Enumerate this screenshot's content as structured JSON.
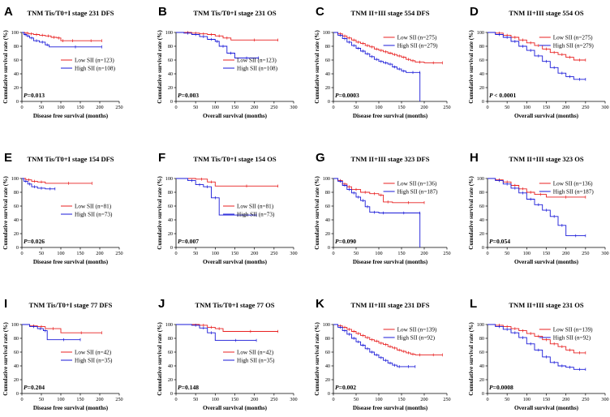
{
  "figure": {
    "letters": [
      "A",
      "B",
      "C",
      "D",
      "E",
      "F",
      "G",
      "H",
      "I",
      "J",
      "K",
      "L"
    ],
    "colors": {
      "low": "#e82020",
      "high": "#1a1ad8",
      "axis": "#000000"
    }
  },
  "chart_data": [
    {
      "type": "line",
      "letter": "A",
      "title": "TNM Tis/T0+I stage 231 DFS",
      "xlabel": "Disease free survival (months)",
      "ylabel": "Cumulative survival rate (%)",
      "xlim": [
        0,
        250
      ],
      "xticks": [
        0,
        50,
        100,
        150,
        200,
        250
      ],
      "ylim": [
        0,
        100
      ],
      "yticks": [
        0,
        20,
        40,
        60,
        80,
        100
      ],
      "pvalue": "P=0.013",
      "legend_position": "center-right",
      "series": [
        {
          "name": "Low SII (n=123)",
          "color": "#e82020",
          "x": [
            0,
            8,
            18,
            30,
            45,
            60,
            75,
            90,
            100,
            110,
            150,
            205
          ],
          "y": [
            100,
            99,
            98,
            97,
            96,
            95,
            93,
            92,
            88,
            88,
            88,
            88
          ]
        },
        {
          "name": "High SII (n=108)",
          "color": "#1a1ad8",
          "x": [
            0,
            5,
            12,
            20,
            30,
            45,
            60,
            70,
            205
          ],
          "y": [
            100,
            97,
            95,
            92,
            88,
            86,
            82,
            79,
            79
          ]
        }
      ]
    },
    {
      "type": "line",
      "letter": "B",
      "title": "TNM Tis/T0+I stage 231 OS",
      "xlabel": "Overall survival (months)",
      "ylabel": "Cumulative survival rate (%)",
      "xlim": [
        0,
        300
      ],
      "xticks": [
        0,
        50,
        100,
        150,
        200,
        250,
        300
      ],
      "ylim": [
        0,
        100
      ],
      "yticks": [
        0,
        20,
        40,
        60,
        80,
        100
      ],
      "pvalue": "P=0.003",
      "legend_position": "center-right",
      "series": [
        {
          "name": "Low SII (n=123)",
          "color": "#e82020",
          "x": [
            0,
            20,
            40,
            60,
            80,
            100,
            120,
            140,
            260
          ],
          "y": [
            100,
            100,
            99,
            98,
            97,
            95,
            92,
            89,
            89
          ]
        },
        {
          "name": "High SII (n=108)",
          "color": "#1a1ad8",
          "x": [
            0,
            20,
            40,
            60,
            80,
            100,
            110,
            130,
            150,
            210
          ],
          "y": [
            100,
            99,
            97,
            94,
            90,
            87,
            80,
            70,
            63,
            63
          ]
        }
      ]
    },
    {
      "type": "line",
      "letter": "C",
      "title": "TNM II+III stage 554 DFS",
      "xlabel": "Disease free survival (months)",
      "ylabel": "Cumulative survival rate (%)",
      "xlim": [
        0,
        250
      ],
      "xticks": [
        0,
        50,
        100,
        150,
        200,
        250
      ],
      "ylim": [
        0,
        100
      ],
      "yticks": [
        0,
        20,
        40,
        60,
        80,
        100
      ],
      "pvalue": "P=0.0003",
      "legend_position": "top-right",
      "series": [
        {
          "name": "Low SII (n=275)",
          "color": "#e82020",
          "x": [
            0,
            10,
            20,
            30,
            40,
            50,
            60,
            70,
            80,
            90,
            100,
            110,
            120,
            130,
            140,
            150,
            160,
            170,
            180,
            200,
            240
          ],
          "y": [
            100,
            98,
            95,
            92,
            89,
            86,
            84,
            81,
            79,
            76,
            74,
            72,
            70,
            68,
            66,
            64,
            61,
            59,
            57,
            56,
            56
          ]
        },
        {
          "name": "High SII (n=279)",
          "color": "#1a1ad8",
          "x": [
            0,
            10,
            20,
            30,
            40,
            50,
            60,
            70,
            80,
            90,
            100,
            110,
            120,
            130,
            140,
            150,
            160,
            190,
            190.5
          ],
          "y": [
            100,
            96,
            91,
            86,
            81,
            77,
            73,
            69,
            65,
            61,
            58,
            56,
            54,
            50,
            47,
            44,
            42,
            42,
            0
          ]
        }
      ]
    },
    {
      "type": "line",
      "letter": "D",
      "title": "TNM II+III stage 554 OS",
      "xlabel": "Overall survival (months)",
      "ylabel": "Cumulative survival rate (%)",
      "xlim": [
        0,
        300
      ],
      "xticks": [
        0,
        50,
        100,
        150,
        200,
        250,
        300
      ],
      "ylim": [
        0,
        100
      ],
      "yticks": [
        0,
        20,
        40,
        60,
        80,
        100
      ],
      "pvalue": "P < 0.0001",
      "legend_position": "top-right",
      "series": [
        {
          "name": "Low SII (n=275)",
          "color": "#e82020",
          "x": [
            0,
            20,
            40,
            60,
            80,
            100,
            120,
            140,
            160,
            180,
            200,
            220,
            250
          ],
          "y": [
            100,
            99,
            96,
            93,
            89,
            85,
            81,
            76,
            71,
            68,
            64,
            60,
            60
          ]
        },
        {
          "name": "High SII (n=279)",
          "color": "#1a1ad8",
          "x": [
            0,
            20,
            40,
            60,
            80,
            100,
            120,
            140,
            160,
            180,
            200,
            220,
            250
          ],
          "y": [
            100,
            97,
            93,
            87,
            80,
            74,
            66,
            58,
            49,
            41,
            36,
            32,
            32
          ]
        }
      ]
    },
    {
      "type": "line",
      "letter": "E",
      "title": "TNM Tis/T0+I stage 154 DFS",
      "xlabel": "Disease free survival (months)",
      "ylabel": "Cumulative survival rate (%)",
      "xlim": [
        0,
        250
      ],
      "xticks": [
        0,
        50,
        100,
        150,
        200,
        250
      ],
      "ylim": [
        0,
        100
      ],
      "yticks": [
        0,
        20,
        40,
        60,
        80,
        100
      ],
      "pvalue": "P=0.026",
      "legend_position": "center-right",
      "series": [
        {
          "name": "Low SII (n=81)",
          "color": "#e82020",
          "x": [
            0,
            10,
            25,
            40,
            60,
            180
          ],
          "y": [
            100,
            98,
            96,
            95,
            93,
            93
          ]
        },
        {
          "name": "High SII (n=73)",
          "color": "#1a1ad8",
          "x": [
            0,
            5,
            15,
            25,
            40,
            60,
            85
          ],
          "y": [
            100,
            96,
            92,
            88,
            86,
            85,
            85
          ]
        }
      ]
    },
    {
      "type": "line",
      "letter": "F",
      "title": "TNM Tis/T0+I stage 154 OS",
      "xlabel": "Overall survival (months)",
      "ylabel": "Cumulative survival rate (%)",
      "xlim": [
        0,
        300
      ],
      "xticks": [
        0,
        50,
        100,
        150,
        200,
        250,
        300
      ],
      "ylim": [
        0,
        100
      ],
      "yticks": [
        0,
        20,
        40,
        60,
        80,
        100
      ],
      "pvalue": "P=0.007",
      "legend_position": "center-right",
      "series": [
        {
          "name": "Low SII (n=81)",
          "color": "#e82020",
          "x": [
            0,
            50,
            80,
            100,
            260
          ],
          "y": [
            100,
            99,
            95,
            89,
            89
          ]
        },
        {
          "name": "High SII (n=73)",
          "color": "#1a1ad8",
          "x": [
            0,
            30,
            50,
            70,
            90,
            110,
            205
          ],
          "y": [
            100,
            97,
            91,
            88,
            72,
            47,
            47
          ]
        }
      ]
    },
    {
      "type": "line",
      "letter": "G",
      "title": "TNM II+III stage 323 DFS",
      "xlabel": "Disease free survival (months)",
      "ylabel": "Cumulative survival rate (%)",
      "xlim": [
        0,
        250
      ],
      "xticks": [
        0,
        50,
        100,
        150,
        200,
        250
      ],
      "ylim": [
        0,
        100
      ],
      "yticks": [
        0,
        20,
        40,
        60,
        80,
        100
      ],
      "pvalue": "P=0.090",
      "legend_position": "top-right",
      "series": [
        {
          "name": "Low SII (n=136)",
          "color": "#e82020",
          "x": [
            0,
            10,
            20,
            30,
            40,
            60,
            80,
            100,
            110,
            130,
            200
          ],
          "y": [
            100,
            97,
            92,
            88,
            84,
            80,
            78,
            76,
            66,
            65,
            65
          ]
        },
        {
          "name": "High SII (n=187)",
          "color": "#1a1ad8",
          "x": [
            0,
            10,
            20,
            30,
            40,
            50,
            60,
            70,
            80,
            100,
            120,
            190,
            190.5
          ],
          "y": [
            100,
            96,
            90,
            84,
            79,
            73,
            68,
            59,
            51,
            50,
            50,
            50,
            0
          ]
        }
      ]
    },
    {
      "type": "line",
      "letter": "H",
      "title": "TNM II+III stage 323 OS",
      "xlabel": "Overall survival (months)",
      "ylabel": "Cumulative survival rate (%)",
      "xlim": [
        0,
        300
      ],
      "xticks": [
        0,
        50,
        100,
        150,
        200,
        250,
        300
      ],
      "ylim": [
        0,
        100
      ],
      "yticks": [
        0,
        20,
        40,
        60,
        80,
        100
      ],
      "pvalue": "P=0.054",
      "legend_position": "top-right",
      "series": [
        {
          "name": "Low SII (n=136)",
          "color": "#e82020",
          "x": [
            0,
            20,
            40,
            60,
            80,
            100,
            120,
            150,
            250
          ],
          "y": [
            100,
            98,
            95,
            90,
            85,
            80,
            77,
            73,
            73
          ]
        },
        {
          "name": "High SII (n=187)",
          "color": "#1a1ad8",
          "x": [
            0,
            20,
            40,
            60,
            80,
            100,
            120,
            140,
            160,
            180,
            200,
            250
          ],
          "y": [
            100,
            97,
            92,
            86,
            79,
            70,
            62,
            54,
            45,
            32,
            17,
            17
          ]
        }
      ]
    },
    {
      "type": "line",
      "letter": "I",
      "title": "TNM Tis/T0+I stage 77 DFS",
      "xlabel": "Disease free survival (months)",
      "ylabel": "Cumulative survival rate (%)",
      "xlim": [
        0,
        250
      ],
      "xticks": [
        0,
        50,
        100,
        150,
        200,
        250
      ],
      "ylim": [
        0,
        100
      ],
      "yticks": [
        0,
        20,
        40,
        60,
        80,
        100
      ],
      "pvalue": "P=0.204",
      "legend_position": "center-right",
      "series": [
        {
          "name": "Low SII (n=42)",
          "color": "#e82020",
          "x": [
            0,
            20,
            40,
            60,
            100,
            205
          ],
          "y": [
            100,
            98,
            97,
            94,
            88,
            88
          ]
        },
        {
          "name": "High SII (n=35)",
          "color": "#1a1ad8",
          "x": [
            0,
            20,
            40,
            55,
            65,
            150
          ],
          "y": [
            100,
            97,
            94,
            91,
            78,
            78
          ]
        }
      ]
    },
    {
      "type": "line",
      "letter": "J",
      "title": "TNM Tis/T0+I stage 77 OS",
      "xlabel": "Overall survival (months)",
      "ylabel": "Cumulative survival rate (%)",
      "xlim": [
        0,
        300
      ],
      "xticks": [
        0,
        50,
        100,
        150,
        200,
        250,
        300
      ],
      "ylim": [
        0,
        100
      ],
      "yticks": [
        0,
        20,
        40,
        60,
        80,
        100
      ],
      "pvalue": "P=0.148",
      "legend_position": "center-right",
      "series": [
        {
          "name": "Low SII (n=42)",
          "color": "#e82020",
          "x": [
            0,
            60,
            80,
            100,
            120,
            260
          ],
          "y": [
            100,
            99,
            96,
            94,
            90,
            90
          ]
        },
        {
          "name": "High SII (n=35)",
          "color": "#1a1ad8",
          "x": [
            0,
            40,
            60,
            80,
            100,
            205
          ],
          "y": [
            100,
            99,
            95,
            88,
            77,
            77
          ]
        }
      ]
    },
    {
      "type": "line",
      "letter": "K",
      "title": "TNM II+III stage 231 DFS",
      "xlabel": "Disease free survival (months)",
      "ylabel": "Cumulative survival rate (%)",
      "xlim": [
        0,
        250
      ],
      "xticks": [
        0,
        50,
        100,
        150,
        200,
        250
      ],
      "ylim": [
        0,
        100
      ],
      "yticks": [
        0,
        20,
        40,
        60,
        80,
        100
      ],
      "pvalue": "P=0.002",
      "legend_position": "top-right",
      "series": [
        {
          "name": "Low SII (n=139)",
          "color": "#e82020",
          "x": [
            0,
            10,
            20,
            30,
            40,
            50,
            60,
            70,
            80,
            90,
            100,
            110,
            120,
            130,
            140,
            150,
            160,
            170,
            180,
            200,
            240
          ],
          "y": [
            100,
            98,
            96,
            93,
            90,
            87,
            84,
            81,
            78,
            76,
            73,
            71,
            68,
            66,
            63,
            61,
            59,
            57,
            56,
            56,
            56
          ]
        },
        {
          "name": "High SII (n=92)",
          "color": "#1a1ad8",
          "x": [
            0,
            10,
            20,
            30,
            40,
            50,
            60,
            70,
            80,
            90,
            100,
            110,
            120,
            130,
            140,
            150,
            180
          ],
          "y": [
            100,
            96,
            91,
            86,
            80,
            75,
            70,
            65,
            60,
            56,
            52,
            48,
            44,
            41,
            39,
            39,
            39
          ]
        }
      ]
    },
    {
      "type": "line",
      "letter": "L",
      "title": "TNM II+III stage 231 OS",
      "xlabel": "Overall survival (months)",
      "ylabel": "Cumulative survival rate (%)",
      "xlim": [
        0,
        300
      ],
      "xticks": [
        0,
        50,
        100,
        150,
        200,
        250,
        300
      ],
      "ylim": [
        0,
        100
      ],
      "yticks": [
        0,
        20,
        40,
        60,
        80,
        100
      ],
      "pvalue": "P=0.0008",
      "legend_position": "top-right",
      "series": [
        {
          "name": "Low SII (n=139)",
          "color": "#e82020",
          "x": [
            0,
            20,
            40,
            60,
            80,
            100,
            120,
            140,
            160,
            180,
            200,
            220,
            250
          ],
          "y": [
            100,
            99,
            97,
            94,
            91,
            87,
            83,
            78,
            72,
            68,
            63,
            59,
            59
          ]
        },
        {
          "name": "High SII (n=92)",
          "color": "#1a1ad8",
          "x": [
            0,
            20,
            40,
            60,
            80,
            100,
            120,
            140,
            160,
            180,
            200,
            220,
            250
          ],
          "y": [
            100,
            97,
            93,
            88,
            81,
            72,
            63,
            53,
            45,
            40,
            38,
            35,
            35
          ]
        }
      ]
    }
  ]
}
